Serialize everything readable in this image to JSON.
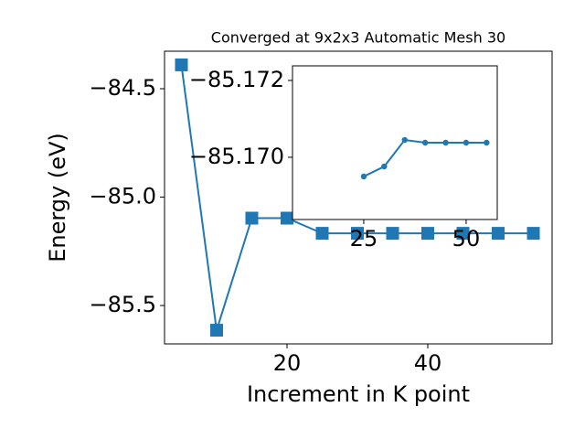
{
  "chart_data": [
    {
      "type": "line",
      "title": "Converged at 9x2x3 Automatic Mesh 30",
      "x_label": "Increment in K point",
      "y_label": "Energy (eV)",
      "x": [
        5,
        10,
        15,
        20,
        25,
        30,
        35,
        40,
        45,
        50,
        55
      ],
      "series": [
        {
          "color": "#1f77b4",
          "marker": "square",
          "values": [
            -84.39,
            -85.614,
            -85.097,
            -85.097,
            -85.167,
            -85.167,
            -85.167,
            -85.167,
            -85.167,
            -85.167,
            -85.167
          ]
        }
      ],
      "xlim": [
        2.6,
        57.66
      ],
      "ylim": [
        -85.677,
        -84.327
      ],
      "xticks": [
        20,
        40
      ],
      "yticks": [
        {
          "value": -84.5,
          "label": "−84.5"
        },
        {
          "value": -85.0,
          "label": "−85.0"
        },
        {
          "value": -85.5,
          "label": "−85.5"
        }
      ]
    },
    {
      "type": "line",
      "x": [
        25,
        30,
        35,
        40,
        45,
        50,
        55
      ],
      "series": [
        {
          "color": "#1f77b4",
          "marker": "circle",
          "values": [
            -85.1695,
            -85.16976,
            -85.17045,
            -85.17038,
            -85.17038,
            -85.17038,
            -85.17038
          ]
        }
      ],
      "xlim": [
        7.6,
        57.6
      ],
      "ylim": [
        -85.16838,
        -85.17238
      ],
      "xticks": [
        25,
        50
      ],
      "yticks": [
        {
          "value": -85.172,
          "label": "−85.172"
        },
        {
          "value": -85.17,
          "label": "−85.170"
        }
      ]
    }
  ]
}
